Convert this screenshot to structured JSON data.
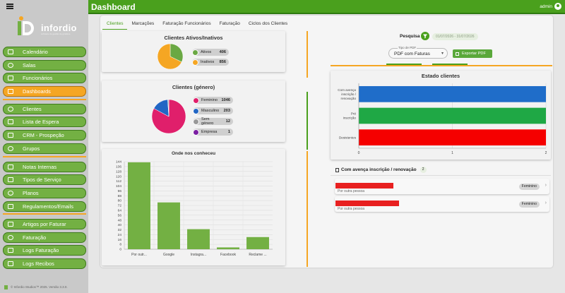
{
  "app": {
    "brand": "infordio",
    "brand_tagline": "software de gestão de ginásios"
  },
  "header": {
    "title": "Dashboard",
    "user": "admin"
  },
  "sidebar": {
    "items": [
      {
        "label": "Calendário",
        "icon": "calendar-icon",
        "active": false
      },
      {
        "label": "Salas",
        "icon": "room-icon",
        "active": false
      },
      {
        "label": "Funcionários",
        "icon": "staff-icon",
        "active": false
      },
      {
        "label": "Dashboards",
        "icon": "dashboard-icon",
        "active": true
      },
      {
        "label": "Clientes",
        "icon": "clients-icon",
        "active": false
      },
      {
        "label": "Lista de Espera",
        "icon": "waitlist-icon",
        "active": false
      },
      {
        "label": "CRM - Prospeção",
        "icon": "crm-icon",
        "active": false
      },
      {
        "label": "Grupos",
        "icon": "groups-icon",
        "active": false
      },
      {
        "label": "Notas Internas",
        "icon": "notes-icon",
        "active": false
      },
      {
        "label": "Tipos de Serviço",
        "icon": "service-types-icon",
        "active": false
      },
      {
        "label": "Planos",
        "icon": "plans-icon",
        "active": false
      },
      {
        "label": "Regulamentos/Emails",
        "icon": "regulations-icon",
        "active": false
      },
      {
        "label": "Artigos por Faturar",
        "icon": "articles-icon",
        "active": false
      },
      {
        "label": "Faturação",
        "icon": "billing-icon",
        "active": false
      },
      {
        "label": "Logs Faturação",
        "icon": "billing-logs-icon",
        "active": false
      },
      {
        "label": "Logs Recibos",
        "icon": "receipt-logs-icon",
        "active": false
      }
    ],
    "footer": "© Infordio Studios™ 2025. Versão 3.3.0."
  },
  "tabs": [
    "Clientes",
    "Marcações",
    "Faturação Funcionários",
    "Faturação",
    "Ciclos dos Clientes"
  ],
  "active_tab": "Clientes",
  "status_card": {
    "title": "Clientes Ativos/Inativos",
    "items": [
      {
        "label": "Ativos",
        "value": 406,
        "color": "#6aa843"
      },
      {
        "label": "Inativos",
        "value": 856,
        "color": "#f5a623"
      }
    ]
  },
  "gender_card": {
    "title": "Clientes (género)",
    "items": [
      {
        "label": "Feminino",
        "value": 1046,
        "color": "#e01f6b"
      },
      {
        "label": "Masculino",
        "value": 203,
        "color": "#2266c4"
      },
      {
        "label": "Sem género",
        "value": 12,
        "color": "#999999"
      },
      {
        "label": "Empresa",
        "value": 1,
        "color": "#7b1fa2"
      }
    ]
  },
  "source_card": {
    "title": "Onde nos conheceu"
  },
  "search": {
    "label": "Pesquisa",
    "date_from": "01/07/2026",
    "date_sep": "-",
    "date_to": "31/07/2026",
    "pdf_type_label": "Tipo de PDF",
    "pdf_type_value": "PDF com Faturas",
    "export_label": "Exportar PDF"
  },
  "state_card": {
    "title": "Estado clientes"
  },
  "list_section": {
    "title": "Com avença inscrição / renovação",
    "count": "2",
    "rows": [
      {
        "subtitle": "Por outra pessoa",
        "badge": "Feminino"
      },
      {
        "subtitle": "Por outra pessoa",
        "badge": "Feminino"
      }
    ]
  },
  "colors": {
    "primary": "#4aa01d",
    "accent": "#f5a623",
    "bar_green": "#73b043"
  },
  "chart_data": [
    {
      "type": "bar",
      "title": "Onde nos conheceu",
      "categories": [
        "Por outr...",
        "Google",
        "Instagra...",
        "Facebook",
        "Reclame ..."
      ],
      "values": [
        143,
        77,
        33,
        3,
        20
      ],
      "ylim": [
        0,
        144
      ],
      "yticks": [
        0,
        8,
        16,
        24,
        32,
        40,
        48,
        56,
        64,
        72,
        80,
        88,
        96,
        104,
        112,
        120,
        128,
        136,
        144
      ],
      "grid": true,
      "color": "#73b043"
    },
    {
      "type": "bar",
      "orientation": "horizontal",
      "title": "Estado clientes",
      "categories": [
        "Com avença inscrição / renovação",
        "Pré inscrição",
        "Desistentes"
      ],
      "values": [
        2,
        2,
        2
      ],
      "colors": [
        "#1f6dc9",
        "#1fa845",
        "#f50000"
      ],
      "xlim": [
        0,
        2
      ],
      "xticks": [
        0,
        1,
        2
      ],
      "grid": true
    },
    {
      "type": "pie",
      "title": "Clientes Ativos/Inativos",
      "categories": [
        "Ativos",
        "Inativos"
      ],
      "values": [
        406,
        856
      ],
      "colors": [
        "#6aa843",
        "#f5a623"
      ]
    },
    {
      "type": "pie",
      "title": "Clientes (género)",
      "categories": [
        "Feminino",
        "Masculino",
        "Sem género",
        "Empresa"
      ],
      "values": [
        1046,
        203,
        12,
        1
      ],
      "colors": [
        "#e01f6b",
        "#2266c4",
        "#999999",
        "#7b1fa2"
      ]
    }
  ]
}
